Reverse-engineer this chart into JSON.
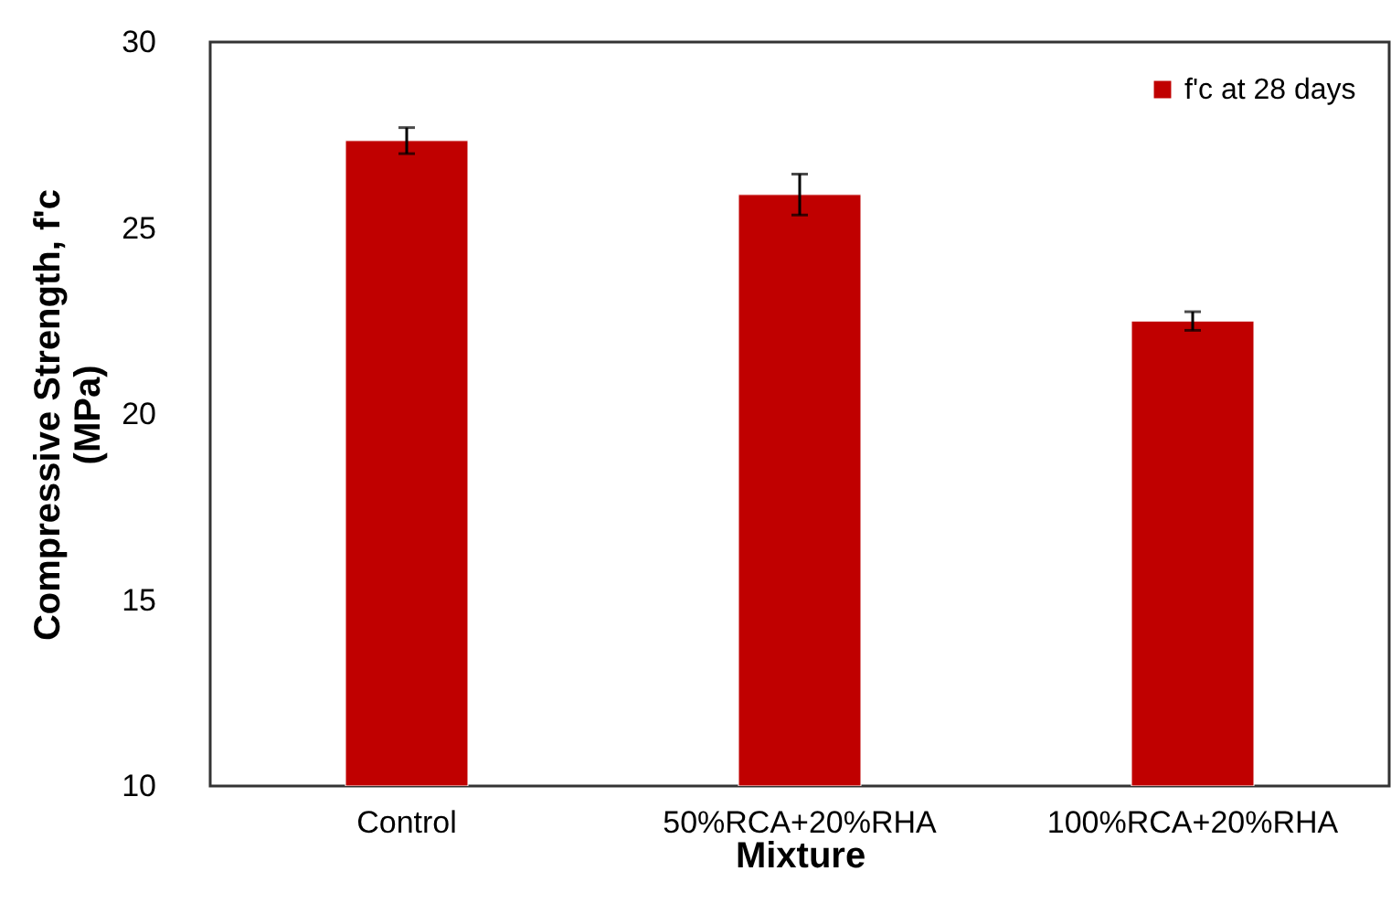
{
  "chart_data": {
    "type": "bar",
    "xlabel": "Mixture",
    "ylabel": "Compressive Strength, f'c\n(MPa)",
    "categories": [
      "Control",
      "50%RCA+20%RHA",
      "100%RCA+20%RHA"
    ],
    "series": [
      {
        "name": "f'c at 28 days",
        "color": "#c00000",
        "values": [
          27.35,
          25.9,
          22.5
        ],
        "errors": [
          0.35,
          0.55,
          0.25
        ]
      }
    ],
    "ylim": [
      10,
      30
    ],
    "yticks": [
      10,
      15,
      20,
      25,
      30
    ],
    "grid": false,
    "legend": "top right"
  }
}
